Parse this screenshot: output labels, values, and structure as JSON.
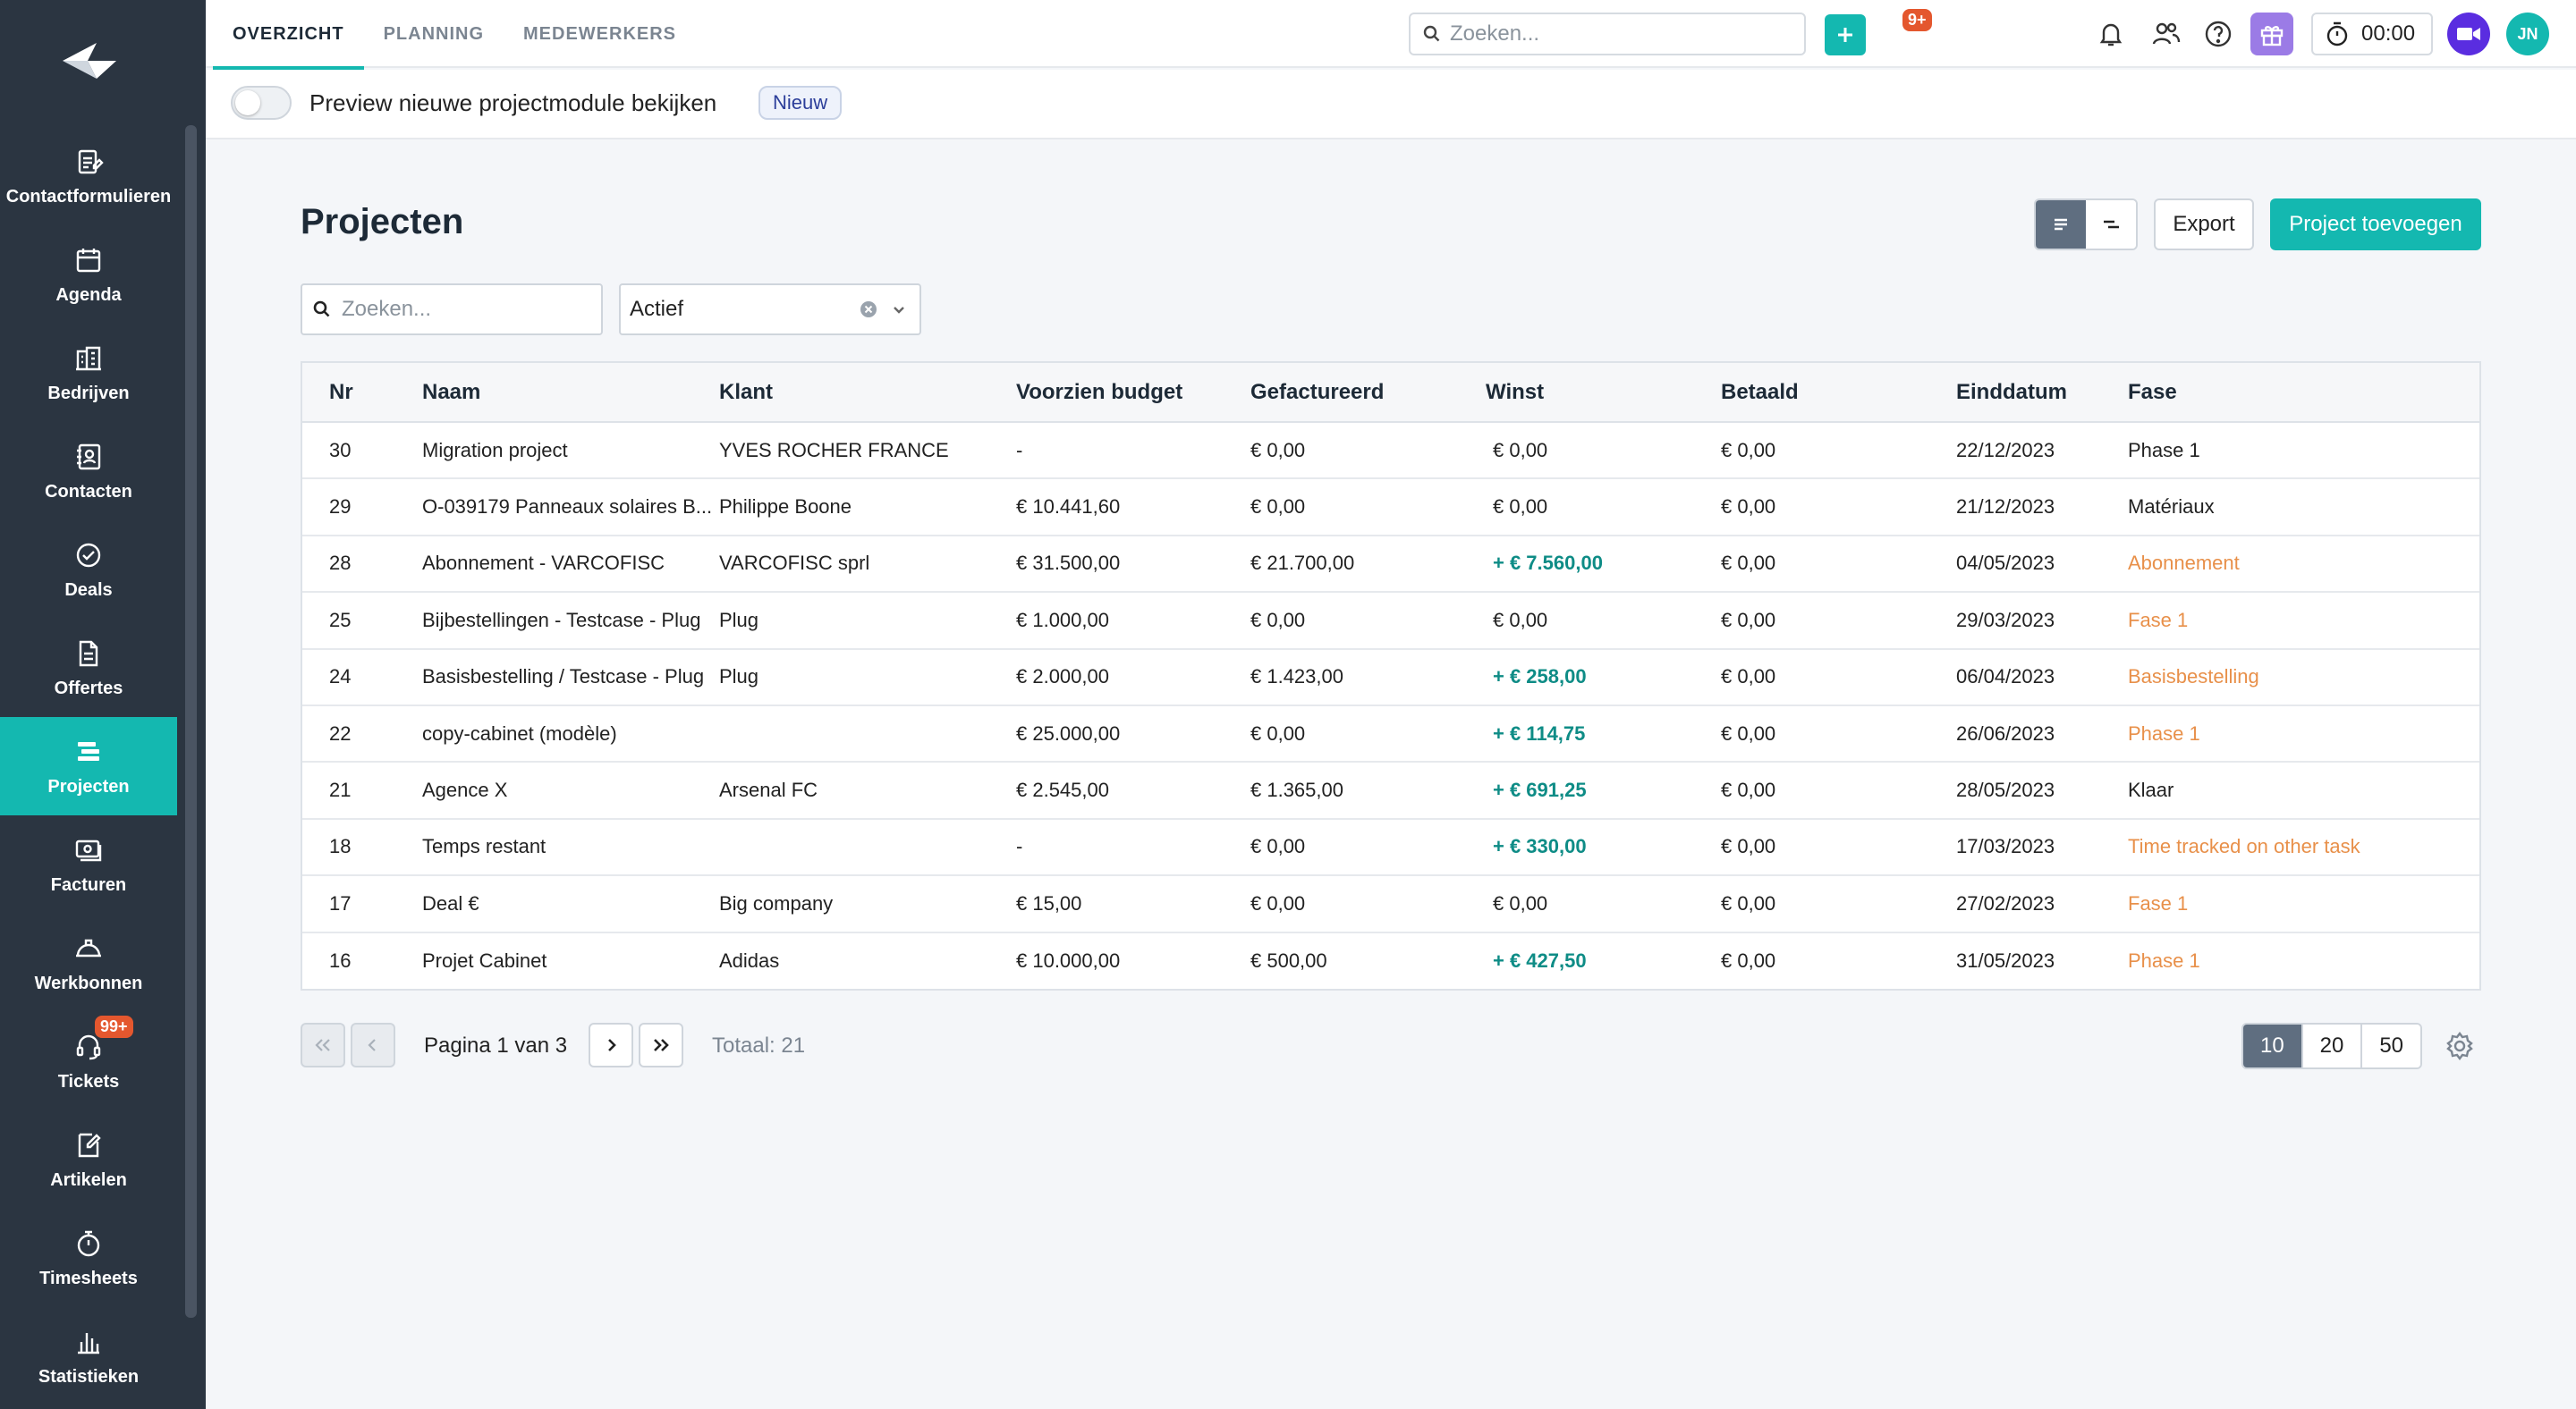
{
  "sidebar": {
    "items": [
      {
        "label": "Contactformulieren",
        "icon": "form-icon"
      },
      {
        "label": "Agenda",
        "icon": "calendar-icon"
      },
      {
        "label": "Bedrijven",
        "icon": "building-icon"
      },
      {
        "label": "Contacten",
        "icon": "contact-book-icon"
      },
      {
        "label": "Deals",
        "icon": "check-circle-icon"
      },
      {
        "label": "Offertes",
        "icon": "document-icon"
      },
      {
        "label": "Projecten",
        "icon": "projects-icon",
        "active": true
      },
      {
        "label": "Facturen",
        "icon": "invoice-icon"
      },
      {
        "label": "Werkbonnen",
        "icon": "helmet-icon"
      },
      {
        "label": "Tickets",
        "icon": "headset-icon",
        "badge": "99+"
      },
      {
        "label": "Artikelen",
        "icon": "article-icon"
      },
      {
        "label": "Timesheets",
        "icon": "stopwatch-icon"
      },
      {
        "label": "Statistieken",
        "icon": "bar-chart-icon"
      }
    ]
  },
  "topbar": {
    "tabs": [
      "OVERZICHT",
      "PLANNING",
      "MEDEWERKERS"
    ],
    "search_placeholder": "Zoeken...",
    "notification_badge": "9+",
    "timer": "00:00",
    "avatar_initials": "JN"
  },
  "preview": {
    "text": "Preview nieuwe projectmodule bekijken",
    "badge": "Nieuw"
  },
  "page": {
    "title": "Projecten",
    "export_label": "Export",
    "add_label": "Project toevoegen"
  },
  "filters": {
    "search_placeholder": "Zoeken...",
    "status_value": "Actief"
  },
  "table": {
    "headers": [
      "Nr",
      "Naam",
      "Klant",
      "Voorzien budget",
      "Gefactureerd",
      "Winst",
      "Betaald",
      "Einddatum",
      "Fase"
    ],
    "rows": [
      {
        "nr": "30",
        "naam": "Migration project",
        "klant": "YVES ROCHER FRANCE",
        "budget": " -",
        "gefactureerd": "€ 0,00",
        "winst": "€ 0,00",
        "betaald": "€ 0,00",
        "einddatum": "22/12/2023",
        "fase": "Phase 1"
      },
      {
        "nr": "29",
        "naam": "O-039179 Panneaux solaires B...",
        "klant": "Philippe Boone",
        "budget": "€ 10.441,60",
        "gefactureerd": "€ 0,00",
        "winst": "€ 0,00",
        "betaald": "€ 0,00",
        "einddatum": "21/12/2023",
        "fase": "Matériaux"
      },
      {
        "nr": "28",
        "naam": "Abonnement - VARCOFISC",
        "klant": "VARCOFISC sprl",
        "budget": "€ 31.500,00",
        "gefactureerd": "€ 21.700,00",
        "winst": "+ € 7.560,00",
        "betaald": "€ 0,00",
        "einddatum": "04/05/2023",
        "fase": "Abonnement"
      },
      {
        "nr": "25",
        "naam": "Bijbestellingen - Testcase - Plug",
        "klant": "Plug",
        "budget": "€ 1.000,00",
        "gefactureerd": "€ 0,00",
        "winst": "€ 0,00",
        "betaald": "€ 0,00",
        "einddatum": "29/03/2023",
        "fase": "Fase 1"
      },
      {
        "nr": "24",
        "naam": "Basisbestelling / Testcase - Plug",
        "klant": "Plug",
        "budget": "€ 2.000,00",
        "gefactureerd": "€ 1.423,00",
        "winst": "+ € 258,00",
        "betaald": "€ 0,00",
        "einddatum": "06/04/2023",
        "fase": "Basisbestelling"
      },
      {
        "nr": "22",
        "naam": "copy-cabinet (modèle)",
        "klant": "",
        "budget": "€ 25.000,00",
        "gefactureerd": "€ 0,00",
        "winst": "+ € 114,75",
        "betaald": "€ 0,00",
        "einddatum": "26/06/2023",
        "fase": "Phase 1"
      },
      {
        "nr": "21",
        "naam": "Agence X",
        "klant": "Arsenal FC",
        "budget": "€ 2.545,00",
        "gefactureerd": "€ 1.365,00",
        "winst": "+ € 691,25",
        "betaald": "€ 0,00",
        "einddatum": "28/05/2023",
        "fase": "Klaar"
      },
      {
        "nr": "18",
        "naam": "Temps restant",
        "klant": "",
        "budget": " -",
        "gefactureerd": "€ 0,00",
        "winst": "+ € 330,00",
        "betaald": "€ 0,00",
        "einddatum": "17/03/2023",
        "fase": "Time tracked on other task"
      },
      {
        "nr": "17",
        "naam": "Deal €",
        "klant": "Big company",
        "budget": "€ 15,00",
        "gefactureerd": "€ 0,00",
        "winst": "€ 0,00",
        "betaald": "€ 0,00",
        "einddatum": "27/02/2023",
        "fase": "Fase 1"
      },
      {
        "nr": "16",
        "naam": "Projet Cabinet",
        "klant": "Adidas",
        "budget": "€ 10.000,00",
        "gefactureerd": "€ 500,00",
        "winst": "+ € 427,50",
        "betaald": "€ 0,00",
        "einddatum": "31/05/2023",
        "fase": "Phase 1"
      }
    ]
  },
  "pagination": {
    "page_text": "Pagina 1 van 3",
    "total_text": "Totaal: 21",
    "sizes": [
      "10",
      "20",
      "50"
    ]
  },
  "colors": {
    "accent": "#14b8b0",
    "sidebar": "#2b3541",
    "orange": "#e8904a",
    "positive": "#0e8c86"
  }
}
